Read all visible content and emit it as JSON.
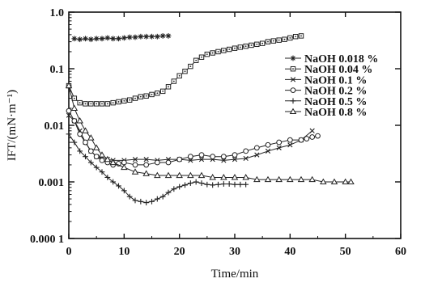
{
  "chart_data": {
    "type": "line",
    "xlabel": "Time/min",
    "ylabel": "IFT/(mN·m⁻¹)",
    "x_range": [
      0,
      60
    ],
    "y_range": [
      0.0001,
      1.0
    ],
    "y_scale": "log",
    "x_ticks": [
      0,
      10,
      20,
      30,
      40,
      50,
      60
    ],
    "x_tick_labels": [
      "0",
      "10",
      "20",
      "30",
      "40",
      "50",
      "60"
    ],
    "y_ticks": [
      1.0,
      0.1,
      0.01,
      0.001,
      0.0001
    ],
    "y_tick_labels": [
      "1.0",
      "0.1",
      "0.01",
      "0.001",
      "0.000 1"
    ],
    "grid": false,
    "legend_position": "top-right",
    "series": [
      {
        "name": "NaOH 0.018 %",
        "marker": "asterisk",
        "x": [
          1,
          2,
          3,
          4,
          5,
          6,
          7,
          8,
          9,
          10,
          11,
          12,
          13,
          14,
          15,
          16,
          17,
          18
        ],
        "y": [
          0.34,
          0.33,
          0.34,
          0.33,
          0.34,
          0.34,
          0.35,
          0.34,
          0.34,
          0.35,
          0.36,
          0.36,
          0.37,
          0.37,
          0.37,
          0.37,
          0.38,
          0.38
        ]
      },
      {
        "name": "NaOH 0.04 %",
        "marker": "square-dot",
        "x": [
          0,
          1,
          2,
          3,
          4,
          5,
          6,
          7,
          8,
          9,
          10,
          11,
          12,
          13,
          14,
          15,
          16,
          17,
          18,
          19,
          20,
          21,
          22,
          23,
          24,
          25,
          26,
          27,
          28,
          29,
          30,
          31,
          32,
          33,
          34,
          35,
          36,
          37,
          38,
          39,
          40,
          41,
          42
        ],
        "y": [
          0.05,
          0.03,
          0.025,
          0.024,
          0.024,
          0.024,
          0.024,
          0.024,
          0.025,
          0.026,
          0.027,
          0.028,
          0.03,
          0.032,
          0.033,
          0.035,
          0.037,
          0.04,
          0.048,
          0.06,
          0.075,
          0.09,
          0.11,
          0.14,
          0.16,
          0.18,
          0.19,
          0.2,
          0.21,
          0.22,
          0.23,
          0.24,
          0.25,
          0.26,
          0.27,
          0.28,
          0.3,
          0.31,
          0.32,
          0.33,
          0.35,
          0.37,
          0.38
        ]
      },
      {
        "name": "NaOH 0.1 %",
        "marker": "x",
        "x": [
          0,
          1,
          2,
          3,
          4,
          5,
          6,
          7,
          8,
          10,
          12,
          14,
          16,
          18,
          20,
          22,
          24,
          26,
          28,
          30,
          32,
          34,
          36,
          38,
          40,
          42,
          44
        ],
        "y": [
          0.015,
          0.012,
          0.008,
          0.005,
          0.0035,
          0.0028,
          0.0026,
          0.0025,
          0.0024,
          0.0024,
          0.0025,
          0.0025,
          0.0024,
          0.0025,
          0.0025,
          0.0024,
          0.0025,
          0.0025,
          0.0024,
          0.0025,
          0.0026,
          0.003,
          0.0035,
          0.004,
          0.0045,
          0.0055,
          0.008
        ]
      },
      {
        "name": "NaOH 0.2 %",
        "marker": "circle",
        "x": [
          0,
          1,
          2,
          3,
          4,
          5,
          6,
          7,
          8,
          9,
          10,
          12,
          14,
          16,
          18,
          20,
          22,
          24,
          26,
          28,
          30,
          32,
          34,
          36,
          38,
          40,
          42,
          43,
          44,
          45
        ],
        "y": [
          0.018,
          0.012,
          0.007,
          0.005,
          0.0035,
          0.0028,
          0.0024,
          0.0022,
          0.002,
          0.0021,
          0.0022,
          0.002,
          0.002,
          0.0022,
          0.0022,
          0.0025,
          0.0028,
          0.003,
          0.0028,
          0.0028,
          0.003,
          0.0035,
          0.004,
          0.0045,
          0.005,
          0.0055,
          0.0055,
          0.0058,
          0.0062,
          0.0065
        ]
      },
      {
        "name": "NaOH 0.5 %",
        "marker": "plus",
        "x": [
          0,
          1,
          2,
          3,
          4,
          5,
          6,
          7,
          8,
          9,
          10,
          11,
          12,
          13,
          14,
          15,
          16,
          17,
          18,
          19,
          20,
          21,
          22,
          23,
          24,
          25,
          26,
          27,
          28,
          29,
          30,
          31,
          32
        ],
        "y": [
          0.007,
          0.005,
          0.0035,
          0.0028,
          0.0022,
          0.0018,
          0.0015,
          0.0012,
          0.001,
          0.00085,
          0.0007,
          0.00055,
          0.00047,
          0.00045,
          0.00043,
          0.00045,
          0.0005,
          0.00055,
          0.00065,
          0.00075,
          0.00082,
          0.00088,
          0.00095,
          0.001,
          0.00095,
          0.0009,
          0.00088,
          0.0009,
          0.00092,
          0.00092,
          0.0009,
          0.0009,
          0.0009
        ]
      },
      {
        "name": "NaOH 0.8 %",
        "marker": "triangle",
        "x": [
          0,
          1,
          2,
          3,
          4,
          5,
          6,
          7,
          8,
          10,
          12,
          14,
          16,
          18,
          20,
          22,
          24,
          26,
          28,
          30,
          32,
          34,
          36,
          38,
          40,
          42,
          44,
          46,
          48,
          50,
          51
        ],
        "y": [
          0.05,
          0.02,
          0.012,
          0.008,
          0.006,
          0.004,
          0.003,
          0.0025,
          0.0022,
          0.0018,
          0.0015,
          0.0014,
          0.0013,
          0.0013,
          0.0013,
          0.0013,
          0.0013,
          0.0012,
          0.0012,
          0.0012,
          0.0012,
          0.0011,
          0.0011,
          0.0011,
          0.0011,
          0.0011,
          0.0011,
          0.001,
          0.001,
          0.001,
          0.001
        ]
      }
    ]
  }
}
